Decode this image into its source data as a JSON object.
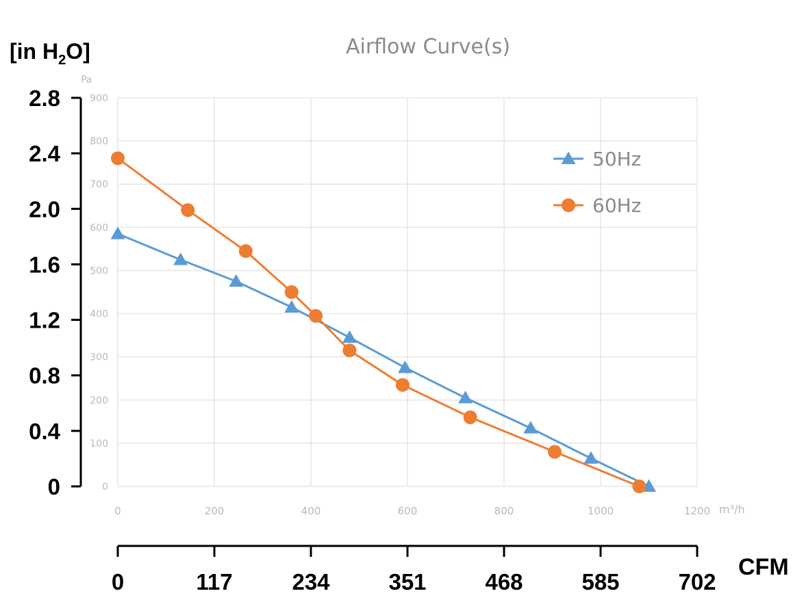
{
  "chart_data": {
    "type": "line",
    "title": "Airflow Curve(s)",
    "primary_x": {
      "unit_label": "m³/h",
      "range": [
        0,
        1200
      ],
      "ticks": [
        0,
        200,
        400,
        600,
        800,
        1000,
        1200
      ]
    },
    "primary_y": {
      "unit_label": "Pa",
      "range": [
        0,
        900
      ],
      "ticks": [
        0,
        100,
        200,
        300,
        400,
        500,
        600,
        700,
        800,
        900
      ]
    },
    "secondary_y": {
      "label_prefix": "[in H",
      "label_sub": "2",
      "label_suffix": "O]",
      "ticks": [
        "0",
        "0.4",
        "0.8",
        "1.2",
        "1.6",
        "2.0",
        "2.4",
        "2.8"
      ],
      "values": [
        0,
        0.4,
        0.8,
        1.2,
        1.6,
        2.0,
        2.4,
        2.8
      ]
    },
    "secondary_x": {
      "label": "CFM",
      "ticks": [
        "0",
        "117",
        "234",
        "351",
        "468",
        "585",
        "702"
      ],
      "values": [
        0,
        117,
        234,
        351,
        468,
        585,
        702
      ]
    },
    "series": [
      {
        "name": "50Hz",
        "color": "#5b9bd5",
        "marker": "triangle",
        "x": [
          0,
          130,
          245,
          360,
          480,
          595,
          720,
          855,
          980,
          1100
        ],
        "y": [
          585,
          525,
          475,
          415,
          345,
          275,
          205,
          135,
          65,
          0
        ]
      },
      {
        "name": "60Hz",
        "color": "#ed7d31",
        "marker": "circle",
        "x": [
          0,
          145,
          265,
          360,
          410,
          480,
          590,
          730,
          905,
          1080
        ],
        "y": [
          760,
          640,
          545,
          450,
          395,
          315,
          235,
          160,
          80,
          0
        ]
      }
    ]
  }
}
